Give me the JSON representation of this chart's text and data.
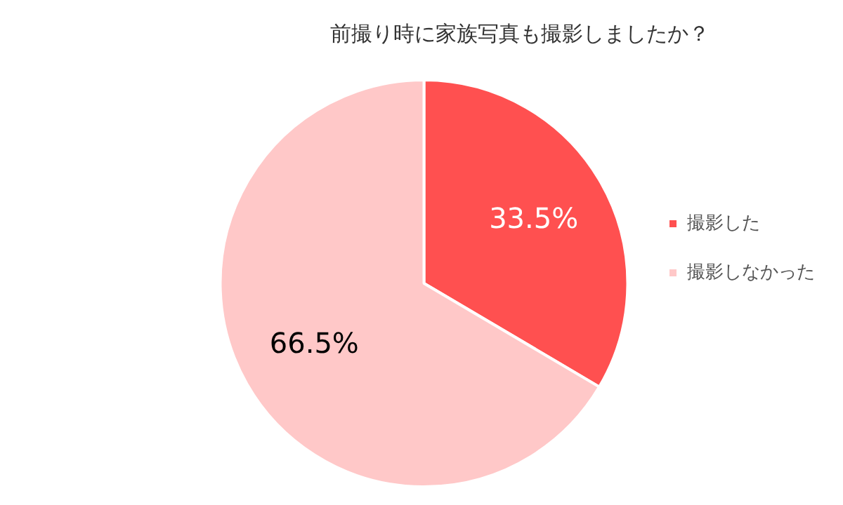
{
  "chart_data": {
    "type": "pie",
    "title": "前撮り時に家族写真も撮影しましたか？",
    "categories": [
      "撮影した",
      "撮影しなかった"
    ],
    "values": [
      33.5,
      66.5
    ],
    "colors": [
      "#ff5050",
      "#ffc8c8"
    ],
    "value_labels": [
      "33.5%",
      "66.5%"
    ],
    "legend": "right"
  }
}
